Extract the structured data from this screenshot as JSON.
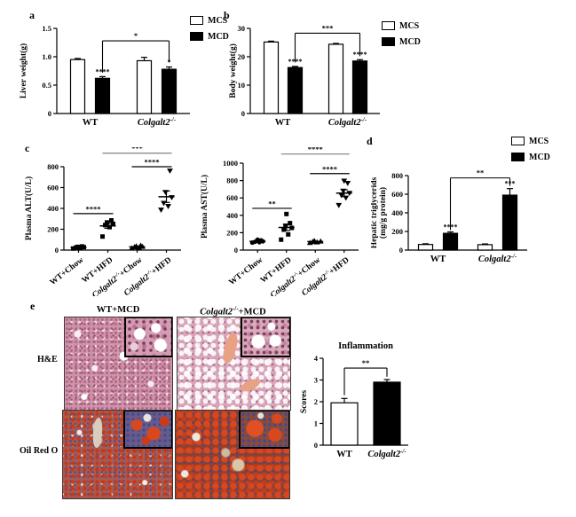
{
  "panels": {
    "a": "a",
    "b": "b",
    "c": "c",
    "d": "d",
    "e": "e"
  },
  "legend": {
    "mcs": "MCS",
    "mcd": "MCD"
  },
  "panel_e": {
    "col1_title": "WT+MCD",
    "col2_gene": "Colgalt2",
    "col2_sup": "-/-",
    "col2_rest": "+MCD",
    "row1": "H&E",
    "row2": "Oil Red O"
  },
  "colors": {
    "mcs_fill": "#ffffff",
    "mcd_fill": "#000000",
    "axis": "#000000",
    "he_base": "#d8a4b8",
    "he_vacuole": "#ffffff",
    "he_vessel": "#e9a183",
    "oro_base_wt": "#9a5e64",
    "oro_base_ko": "#943f2c",
    "oro_red": "#d2451f",
    "oro_blue": "#3f4c8c"
  },
  "chart_data": [
    {
      "type": "bar",
      "title": "",
      "ylabel": [
        "Liver weight(g)"
      ],
      "ylim": [
        0,
        1.5
      ],
      "yticks": [
        0,
        0.5,
        1.0,
        1.5
      ],
      "ytick_labels": [
        "0",
        "0.5",
        "1.0",
        "1.5"
      ],
      "categories": [
        {
          "t": "WT"
        },
        {
          "t": "Colgalt2",
          "sup": "-/-",
          "i": true
        }
      ],
      "series": [
        {
          "name": "MCS",
          "fill": "#ffffff",
          "values": [
            0.95,
            0.93
          ],
          "errors": [
            0.02,
            0.06
          ],
          "sig": [
            "",
            ""
          ]
        },
        {
          "name": "MCD",
          "fill": "#000000",
          "values": [
            0.62,
            0.78
          ],
          "errors": [
            0.03,
            0.04
          ],
          "sig": [
            "****",
            "*"
          ]
        }
      ],
      "brackets": [
        {
          "b1": 1,
          "b2": 3,
          "y": 1.28,
          "l1": 0.72,
          "l2": 0.9,
          "label": "*",
          "stroke": "#000000"
        }
      ]
    },
    {
      "type": "bar",
      "title": "",
      "ylabel": [
        "Body weight(g)"
      ],
      "ylim": [
        0,
        30
      ],
      "yticks": [
        0,
        10,
        20,
        30
      ],
      "ytick_labels": [
        "0",
        "10",
        "20",
        "30"
      ],
      "categories": [
        {
          "t": "WT"
        },
        {
          "t": "Colgalt2",
          "sup": "-/-",
          "i": true
        }
      ],
      "series": [
        {
          "name": "MCS",
          "fill": "#ffffff",
          "values": [
            25.2,
            24.4
          ],
          "errors": [
            0.3,
            0.3
          ],
          "sig": [
            "",
            ""
          ]
        },
        {
          "name": "MCD",
          "fill": "#000000",
          "values": [
            16.2,
            18.5
          ],
          "errors": [
            0.4,
            0.5
          ],
          "sig": [
            "****",
            "****"
          ]
        }
      ],
      "brackets": [
        {
          "b1": 1,
          "b2": 3,
          "y": 28.3,
          "l1": 18.0,
          "l2": 20.2,
          "label": "***",
          "stroke": "#000000"
        }
      ]
    },
    {
      "type": "scatter",
      "ylabel": [
        "Plasma ALT(U/L)"
      ],
      "ylim": [
        0,
        800
      ],
      "yticks": [
        0,
        200,
        400,
        600,
        800
      ],
      "ytick_labels": [
        "0",
        "200",
        "400",
        "600",
        "800"
      ],
      "groups": [
        {
          "label": {
            "t": "WT+Chow"
          },
          "marker": "square",
          "points": [
            15,
            20,
            24,
            28,
            31,
            35
          ],
          "mean": 26,
          "sem": 5
        },
        {
          "label": {
            "t": "WT+HFD"
          },
          "marker": "square",
          "points": [
            130,
            220,
            240,
            252,
            265,
            285
          ],
          "mean": 232,
          "sem": 22
        },
        {
          "label": {
            "t": "Colgalt2",
            "sup": "-/-",
            "i": true,
            "rest": "+Chow"
          },
          "marker": "triangle",
          "points": [
            18,
            24,
            30,
            34,
            39,
            45
          ],
          "mean": 31,
          "sem": 5
        },
        {
          "label": {
            "t": "Colgalt2",
            "sup": "-/-",
            "i": true,
            "rest": "+HFD"
          },
          "marker": "triangle-down",
          "points": [
            385,
            420,
            450,
            505,
            555,
            760
          ],
          "mean": 512,
          "sem": 55
        }
      ],
      "brackets": [
        {
          "g1": 0,
          "g2": 1,
          "y": 350,
          "label": "****",
          "stroke": "#000000"
        },
        {
          "g1": 2,
          "g2": 3,
          "y": 800,
          "label": "****",
          "stroke": "#000000"
        },
        {
          "g1": 1,
          "g2": 3,
          "y": 930,
          "label": "***",
          "stroke": "#808080"
        }
      ]
    },
    {
      "type": "scatter",
      "ylabel": [
        "Plasma AST(U/L)"
      ],
      "ylim": [
        0,
        1000
      ],
      "yticks": [
        0,
        200,
        400,
        600,
        800,
        1000
      ],
      "ytick_labels": [
        "0",
        "200",
        "400",
        "600",
        "800",
        "1000"
      ],
      "groups": [
        {
          "label": {
            "t": "WT+Chow"
          },
          "marker": "circle",
          "points": [
            85,
            90,
            95,
            100,
            106,
            112,
            120
          ],
          "mean": 101,
          "sem": 5
        },
        {
          "label": {
            "t": "WT+HFD"
          },
          "marker": "square",
          "points": [
            120,
            180,
            235,
            255,
            280,
            310,
            415
          ],
          "mean": 260,
          "sem": 35
        },
        {
          "label": {
            "t": "Colgalt2",
            "sup": "-/-",
            "i": true,
            "rest": "+Chow"
          },
          "marker": "triangle",
          "points": [
            85,
            92,
            97,
            102,
            108
          ],
          "mean": 97,
          "sem": 4
        },
        {
          "label": {
            "t": "Colgalt2",
            "sup": "-/-",
            "i": true,
            "rest": "+HFD"
          },
          "marker": "triangle-down",
          "points": [
            515,
            600,
            630,
            655,
            680,
            770,
            795
          ],
          "mean": 655,
          "sem": 40
        }
      ],
      "brackets": [
        {
          "g1": 0,
          "g2": 1,
          "y": 480,
          "label": "**",
          "stroke": "#000000"
        },
        {
          "g1": 2,
          "g2": 3,
          "y": 880,
          "label": "****",
          "stroke": "#000000"
        },
        {
          "g1": 1,
          "g2": 3,
          "y": 1105,
          "label": "****",
          "stroke": "#808080"
        }
      ]
    },
    {
      "type": "bar",
      "title": "",
      "ylabel": [
        "Hepatic triglycerids",
        "(mg/g protein)"
      ],
      "ylim": [
        0,
        800
      ],
      "yticks": [
        0,
        200,
        400,
        600,
        800
      ],
      "ytick_labels": [
        "0",
        "200",
        "400",
        "600",
        "800"
      ],
      "categories": [
        {
          "t": "WT"
        },
        {
          "t": "Colgalt2",
          "sup": "-/-",
          "i": true
        }
      ],
      "series": [
        {
          "name": "MCS",
          "fill": "#ffffff",
          "values": [
            60,
            58
          ],
          "errors": [
            8,
            8
          ],
          "sig": [
            "",
            ""
          ]
        },
        {
          "name": "MCD",
          "fill": "#000000",
          "values": [
            180,
            590
          ],
          "errors": [
            15,
            70
          ],
          "sig": [
            "****",
            "***"
          ]
        }
      ],
      "brackets": [
        {
          "b1": 1,
          "b2": 3,
          "y": 775,
          "l1": 215,
          "l2": 690,
          "label": "**",
          "stroke": "#000000"
        }
      ]
    },
    {
      "type": "bar",
      "title": "Inflammation",
      "ylabel": [
        "Scores"
      ],
      "ylim": [
        0,
        4
      ],
      "yticks": [
        0,
        1,
        2,
        3,
        4
      ],
      "ytick_labels": [
        "0",
        "1",
        "2",
        "3",
        "4"
      ],
      "categories": [
        {
          "t": "WT"
        },
        {
          "t": "Colgalt2",
          "sup": "-/-",
          "i": true
        }
      ],
      "series": [
        {
          "name": "",
          "fills": [
            "#ffffff",
            "#000000"
          ],
          "values": [
            1.95,
            2.9
          ],
          "errors": [
            0.2,
            0.12
          ],
          "sig": [
            "",
            ""
          ]
        }
      ],
      "brackets": [
        {
          "b1": 0,
          "b2": 1,
          "y": 3.55,
          "l1": 2.3,
          "l2": 3.15,
          "label": "**",
          "stroke": "#000000"
        }
      ]
    }
  ]
}
